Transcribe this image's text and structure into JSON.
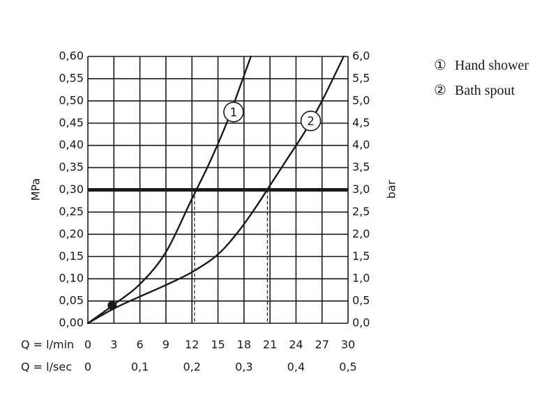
{
  "chart_data": {
    "type": "line",
    "ylabel_left": "MPa",
    "ylabel_right": "bar",
    "x_primary_label": "Q = l/min",
    "x_secondary_label": "Q = l/sec",
    "xlim": [
      0,
      30
    ],
    "ylim": [
      0,
      0.6
    ],
    "x_ticks": [
      "0",
      "3",
      "6",
      "9",
      "12",
      "15",
      "18",
      "21",
      "24",
      "27",
      "30"
    ],
    "x_ticks_secondary": [
      {
        "value": 0,
        "label": "0"
      },
      {
        "value": 6,
        "label": "0,1"
      },
      {
        "value": 12,
        "label": "0,2"
      },
      {
        "value": 18,
        "label": "0,3"
      },
      {
        "value": 24,
        "label": "0,4"
      },
      {
        "value": 30,
        "label": "0,5"
      }
    ],
    "y_ticks_left": [
      "0,00",
      "0,05",
      "0,10",
      "0,15",
      "0,20",
      "0,25",
      "0,30",
      "0,35",
      "0,40",
      "0,45",
      "0,50",
      "0,55",
      "0,60"
    ],
    "y_ticks_right": [
      "0,0",
      "0,5",
      "1,0",
      "1,5",
      "2,0",
      "2,5",
      "3,0",
      "3,5",
      "4,0",
      "4,5",
      "5,0",
      "5,5",
      "6,0"
    ],
    "grid": true,
    "reference_line": {
      "y": 0.3
    },
    "series": [
      {
        "name": "Hand shower",
        "marker": "1",
        "marker_at": {
          "x": 16.8,
          "y": 0.475
        },
        "drop_x": 12.3,
        "x": [
          0,
          3,
          6,
          9,
          12,
          14,
          16,
          17.5,
          18.8
        ],
        "y": [
          0,
          0.042,
          0.088,
          0.16,
          0.28,
          0.36,
          0.45,
          0.53,
          0.6
        ]
      },
      {
        "name": "Bath spout",
        "marker": "2",
        "marker_at": {
          "x": 25.7,
          "y": 0.455
        },
        "drop_x": 20.7,
        "x": [
          0,
          3,
          6,
          9,
          12,
          15,
          17.5,
          19.5,
          21,
          23,
          25,
          27,
          29.5
        ],
        "y": [
          0,
          0.033,
          0.06,
          0.086,
          0.115,
          0.155,
          0.21,
          0.265,
          0.31,
          0.37,
          0.43,
          0.5,
          0.6
        ]
      }
    ],
    "operating_point": {
      "x": 2.8,
      "y": 0.04
    }
  },
  "legend": {
    "items": [
      {
        "marker": "①",
        "label": "Hand shower"
      },
      {
        "marker": "②",
        "label": "Bath spout"
      }
    ]
  }
}
